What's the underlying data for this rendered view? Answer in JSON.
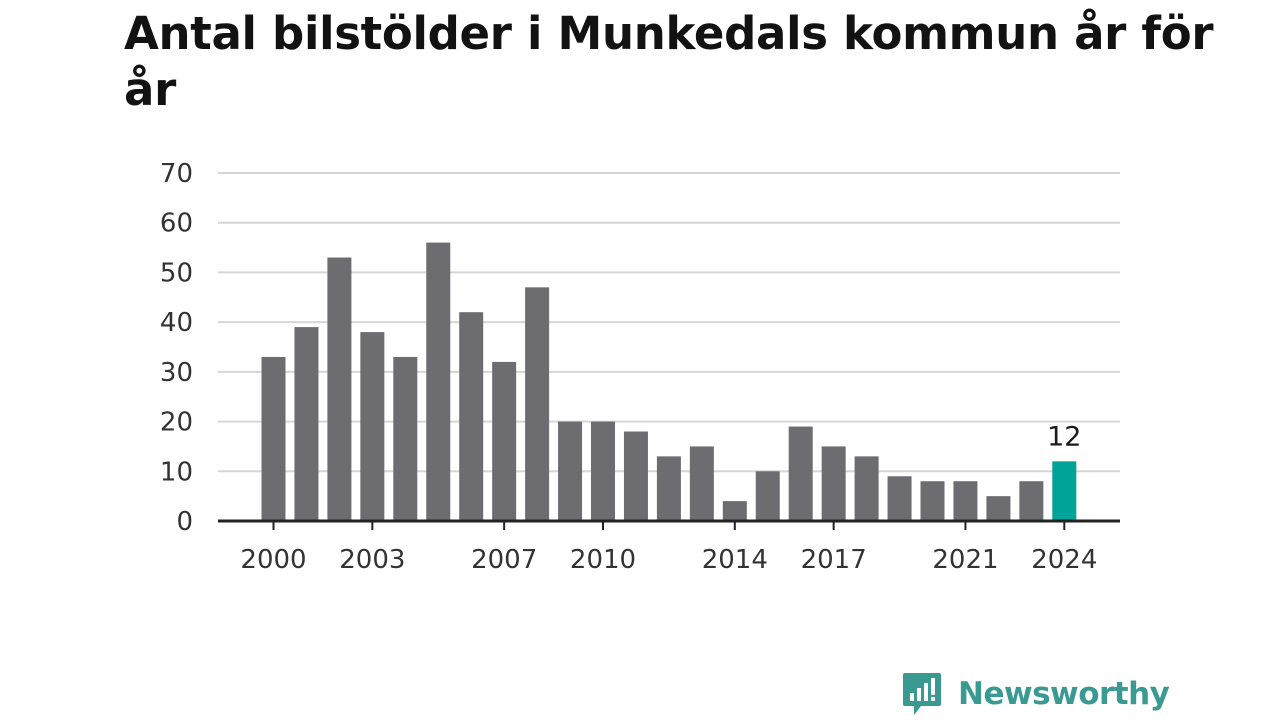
{
  "title": "Antal bilstölder i Munkedals kommun år för år",
  "brand": {
    "name": "Newsworthy",
    "color": "#3a9a92"
  },
  "chart_data": {
    "type": "bar",
    "categories": [
      "2000",
      "2001",
      "2002",
      "2003",
      "2004",
      "2005",
      "2006",
      "2007",
      "2008",
      "2009",
      "2010",
      "2011",
      "2012",
      "2013",
      "2014",
      "2015",
      "2016",
      "2017",
      "2018",
      "2019",
      "2020",
      "2021",
      "2022",
      "2023",
      "2024"
    ],
    "values": [
      33,
      39,
      53,
      38,
      33,
      56,
      42,
      32,
      47,
      20,
      20,
      18,
      13,
      15,
      4,
      10,
      19,
      15,
      13,
      9,
      8,
      8,
      5,
      8,
      12
    ],
    "x_tick_labels": [
      "2000",
      "2003",
      "2007",
      "2010",
      "2014",
      "2017",
      "2021",
      "2024"
    ],
    "ylim": [
      0,
      70
    ],
    "y_ticks": [
      0,
      10,
      20,
      30,
      40,
      50,
      60,
      70
    ],
    "grid": true,
    "highlight": {
      "category": "2024",
      "label": "12"
    },
    "colors": {
      "bar": "#6d6c71",
      "highlight": "#00a398",
      "grid": "#d6d6d6",
      "axis": "#222222"
    }
  }
}
